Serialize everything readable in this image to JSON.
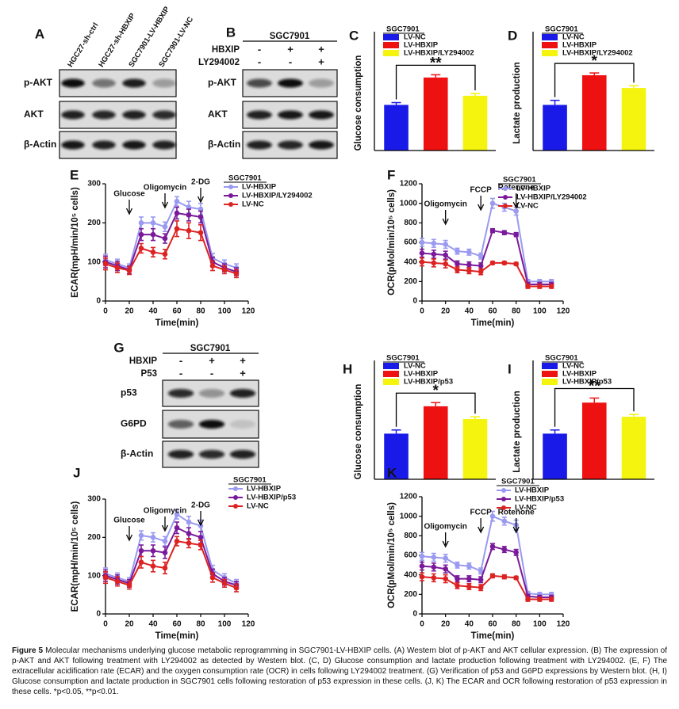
{
  "chart_data": [
    {
      "type": "bar",
      "panel": "C",
      "ylabel": "Glucose consumption",
      "legend_title": "SGC7901",
      "annotation": "**",
      "ylim": [
        0,
        2.5
      ],
      "series": [
        {
          "name": "LV-NC",
          "color": "#1a1ae8",
          "values": [
            1.0
          ],
          "errors": [
            0.05
          ]
        },
        {
          "name": "LV-HBXIP",
          "color": "#ee1111",
          "values": [
            1.6
          ],
          "errors": [
            0.06
          ]
        },
        {
          "name": "LV-HBXIP/LY294002",
          "color": "#f4f40e",
          "values": [
            1.2
          ],
          "errors": [
            0.05
          ]
        }
      ]
    },
    {
      "type": "bar",
      "panel": "D",
      "ylabel": "Lactate production",
      "legend_title": "SGC7901",
      "annotation": "*",
      "ylim": [
        0,
        2.5
      ],
      "series": [
        {
          "name": "LV-NC",
          "color": "#1a1ae8",
          "values": [
            1.0
          ],
          "errors": [
            0.1
          ]
        },
        {
          "name": "LV-HBXIP",
          "color": "#ee1111",
          "values": [
            1.65
          ],
          "errors": [
            0.05
          ]
        },
        {
          "name": "LV-HBXIP/LY294002",
          "color": "#f4f40e",
          "values": [
            1.37
          ],
          "errors": [
            0.05
          ]
        }
      ]
    },
    {
      "type": "line",
      "panel": "E",
      "ylabel": "ECAR(mpH/min/10⁵ cells)",
      "xlabel": "Time(min)",
      "legend_title": "SGC7901",
      "x": [
        0,
        10,
        20,
        30,
        40,
        50,
        60,
        70,
        80,
        90,
        100,
        110
      ],
      "xlim": [
        0,
        120
      ],
      "xticks": [
        0,
        20,
        40,
        60,
        80,
        100,
        120
      ],
      "ylim": [
        0,
        300
      ],
      "yticks": [
        0,
        100,
        200,
        300
      ],
      "annotations": [
        {
          "text": "Glucose",
          "x": 20
        },
        {
          "text": "Oligomycin",
          "x": 50
        },
        {
          "text": "2-DG",
          "x": 80
        }
      ],
      "series": [
        {
          "name": "LV-HBXIP",
          "color": "#9a9af0",
          "values": [
            105,
            95,
            85,
            200,
            200,
            190,
            255,
            240,
            235,
            110,
            95,
            85
          ],
          "errors": [
            15,
            12,
            10,
            15,
            15,
            12,
            12,
            15,
            15,
            12,
            10,
            10
          ]
        },
        {
          "name": "LV-HBXIP/LY294002",
          "color": "#7a1a9a",
          "values": [
            100,
            90,
            80,
            170,
            170,
            160,
            225,
            220,
            215,
            100,
            85,
            75
          ],
          "errors": [
            15,
            12,
            10,
            15,
            15,
            12,
            15,
            15,
            15,
            12,
            10,
            10
          ]
        },
        {
          "name": "LV-NC",
          "color": "#dd2222",
          "values": [
            95,
            85,
            78,
            135,
            125,
            120,
            185,
            180,
            175,
            90,
            80,
            70
          ],
          "errors": [
            15,
            12,
            10,
            12,
            12,
            12,
            20,
            20,
            20,
            12,
            10,
            10
          ]
        }
      ]
    },
    {
      "type": "line",
      "panel": "F",
      "ylabel": "OCR(pMol/min/10⁵ cells)",
      "xlabel": "Time(min)",
      "legend_title": "SGC7901",
      "x": [
        0,
        10,
        20,
        30,
        40,
        50,
        60,
        70,
        80,
        90,
        100,
        110
      ],
      "xlim": [
        0,
        120
      ],
      "xticks": [
        0,
        20,
        40,
        60,
        80,
        100,
        120
      ],
      "ylim": [
        0,
        1200
      ],
      "yticks": [
        0,
        200,
        400,
        600,
        800,
        1000,
        1200
      ],
      "annotations": [
        {
          "text": "Oligomycin",
          "x": 20
        },
        {
          "text": "FCCP",
          "x": 50
        },
        {
          "text": "Rotenone",
          "x": 80
        }
      ],
      "series": [
        {
          "name": "LV-HBXIP",
          "color": "#9a9af0",
          "values": [
            600,
            590,
            580,
            510,
            500,
            460,
            1000,
            960,
            920,
            200,
            200,
            200
          ],
          "errors": [
            40,
            40,
            40,
            30,
            30,
            30,
            50,
            40,
            40,
            20,
            20,
            20
          ]
        },
        {
          "name": "LV-HBXIP/LY294002",
          "color": "#7a1a9a",
          "values": [
            490,
            480,
            470,
            380,
            370,
            360,
            720,
            700,
            680,
            170,
            170,
            170
          ],
          "errors": [
            40,
            40,
            40,
            30,
            30,
            30,
            20,
            20,
            20,
            20,
            20,
            20
          ]
        },
        {
          "name": "LV-NC",
          "color": "#dd2222",
          "values": [
            400,
            390,
            380,
            320,
            310,
            300,
            390,
            390,
            380,
            150,
            150,
            150
          ],
          "errors": [
            40,
            40,
            40,
            30,
            30,
            30,
            15,
            15,
            15,
            20,
            20,
            20
          ]
        }
      ]
    },
    {
      "type": "bar",
      "panel": "H",
      "ylabel": "Glucose consumption",
      "legend_title": "SGC7901",
      "annotation": "*",
      "ylim": [
        0,
        2.5
      ],
      "series": [
        {
          "name": "LV-NC",
          "color": "#1a1ae8",
          "values": [
            1.0
          ],
          "errors": [
            0.08
          ]
        },
        {
          "name": "LV-HBXIP",
          "color": "#ee1111",
          "values": [
            1.6
          ],
          "errors": [
            0.08
          ]
        },
        {
          "name": "LV-HBXIP/p53",
          "color": "#f4f40e",
          "values": [
            1.32
          ],
          "errors": [
            0.05
          ]
        }
      ]
    },
    {
      "type": "bar",
      "panel": "I",
      "ylabel": "Lactate production",
      "legend_title": "SGC7901",
      "annotation": "**",
      "ylim": [
        0,
        2.5
      ],
      "series": [
        {
          "name": "LV-NC",
          "color": "#1a1ae8",
          "values": [
            1.0
          ],
          "errors": [
            0.08
          ]
        },
        {
          "name": "LV-HBXIP",
          "color": "#ee1111",
          "values": [
            1.68
          ],
          "errors": [
            0.1
          ]
        },
        {
          "name": "LV-HBXIP/p53",
          "color": "#f4f40e",
          "values": [
            1.37
          ],
          "errors": [
            0.05
          ]
        }
      ]
    },
    {
      "type": "line",
      "panel": "J",
      "ylabel": "ECAR(mpH/min/10⁵ cells)",
      "xlabel": "Time(min)",
      "legend_title": "SGC7901",
      "x": [
        0,
        10,
        20,
        30,
        40,
        50,
        60,
        70,
        80,
        90,
        100,
        110
      ],
      "xlim": [
        0,
        120
      ],
      "xticks": [
        0,
        20,
        40,
        60,
        80,
        100,
        120
      ],
      "ylim": [
        0,
        300
      ],
      "yticks": [
        0,
        100,
        200,
        300
      ],
      "annotations": [
        {
          "text": "Glucose",
          "x": 20
        },
        {
          "text": "Oligomycin",
          "x": 50
        },
        {
          "text": "2-DG",
          "x": 80
        }
      ],
      "series": [
        {
          "name": "LV-HBXIP",
          "color": "#9a9af0",
          "values": [
            105,
            95,
            85,
            205,
            200,
            190,
            260,
            240,
            230,
            115,
            95,
            80
          ],
          "errors": [
            15,
            12,
            10,
            12,
            12,
            12,
            12,
            15,
            15,
            12,
            10,
            10
          ]
        },
        {
          "name": "LV-HBXIP/p53",
          "color": "#7a1a9a",
          "values": [
            100,
            90,
            80,
            165,
            165,
            160,
            225,
            210,
            200,
            105,
            85,
            75
          ],
          "errors": [
            15,
            12,
            10,
            15,
            15,
            15,
            15,
            15,
            15,
            12,
            10,
            10
          ]
        },
        {
          "name": "LV-NC",
          "color": "#dd2222",
          "values": [
            95,
            85,
            75,
            135,
            125,
            120,
            190,
            185,
            180,
            95,
            80,
            68
          ],
          "errors": [
            15,
            12,
            10,
            15,
            15,
            15,
            12,
            12,
            12,
            12,
            10,
            10
          ]
        }
      ]
    },
    {
      "type": "line",
      "panel": "K",
      "ylabel": "OCR(pMol/min/10⁵ cells)",
      "xlabel": "Time(min)",
      "legend_title": "SGC7901",
      "x": [
        0,
        10,
        20,
        30,
        40,
        50,
        60,
        70,
        80,
        90,
        100,
        110
      ],
      "xlim": [
        0,
        120
      ],
      "xticks": [
        0,
        20,
        40,
        60,
        80,
        100,
        120
      ],
      "ylim": [
        0,
        1200
      ],
      "yticks": [
        0,
        200,
        400,
        600,
        800,
        1000,
        1200
      ],
      "annotations": [
        {
          "text": "Oligomycin",
          "x": 20
        },
        {
          "text": "FCCP",
          "x": 50
        },
        {
          "text": "Rotenone",
          "x": 80
        }
      ],
      "series": [
        {
          "name": "LV-HBXIP",
          "color": "#9a9af0",
          "values": [
            590,
            580,
            570,
            500,
            490,
            440,
            1000,
            950,
            910,
            210,
            200,
            200
          ],
          "errors": [
            40,
            40,
            40,
            30,
            30,
            30,
            50,
            40,
            50,
            20,
            20,
            20
          ]
        },
        {
          "name": "LV-HBXIP/p53",
          "color": "#7a1a9a",
          "values": [
            490,
            480,
            460,
            360,
            360,
            350,
            690,
            660,
            630,
            180,
            170,
            170
          ],
          "errors": [
            40,
            40,
            40,
            30,
            30,
            30,
            30,
            30,
            30,
            20,
            20,
            20
          ]
        },
        {
          "name": "LV-NC",
          "color": "#dd2222",
          "values": [
            380,
            370,
            360,
            290,
            280,
            270,
            390,
            380,
            370,
            150,
            150,
            150
          ],
          "errors": [
            40,
            40,
            40,
            30,
            30,
            30,
            20,
            20,
            15,
            20,
            20,
            20
          ]
        }
      ]
    }
  ],
  "blots": [
    {
      "panel": "A",
      "lanes": [
        "HGC27-sh-ctrl",
        "HGC27-sh-HBXIP",
        "SGC7901-LV-HBXIP",
        "SGC7901-LV-NC"
      ],
      "rows": [
        "p-AKT",
        "AKT",
        "β-Actin"
      ]
    },
    {
      "panel": "B",
      "header": "SGC7901",
      "treatments": [
        {
          "name": "HBXIP",
          "signs": [
            "-",
            "+",
            "+"
          ]
        },
        {
          "name": "LY294002",
          "signs": [
            "-",
            "-",
            "+"
          ]
        }
      ],
      "rows": [
        "p-AKT",
        "AKT",
        "β-Actin"
      ]
    },
    {
      "panel": "G",
      "header": "SGC7901",
      "treatments": [
        {
          "name": "HBXIP",
          "signs": [
            "-",
            "+",
            "+"
          ]
        },
        {
          "name": "P53",
          "signs": [
            "-",
            "-",
            "+"
          ]
        }
      ],
      "rows": [
        "p53",
        "G6PD",
        "β-Actin"
      ]
    }
  ],
  "caption": {
    "label": "Figure 5",
    "text": "Molecular mechanisms underlying glucose metabolic reprogramming in SGC7901-LV-HBXIP cells. (A) Western blot of p-AKT and AKT cellular expression. (B) The expression of p-AKT and AKT following treatment with LY294002 as detected by Western blot. (C, D) Glucose consumption and lactate production following treatment with LY294002. (E, F) The extracellular acidification rate (ECAR) and the oxygen consumption rate (OCR) in cells following LY294002 treatment. (G) Verification of p53 and G6PD expressions by Western blot. (H, I) Glucose consumption and lactate production in SGC7901 cells following restoration of p53 expression in these cells. (J, K) The ECAR and OCR following restoration of p53 expression in these cells. *p<0.05, **p<0.01."
  }
}
